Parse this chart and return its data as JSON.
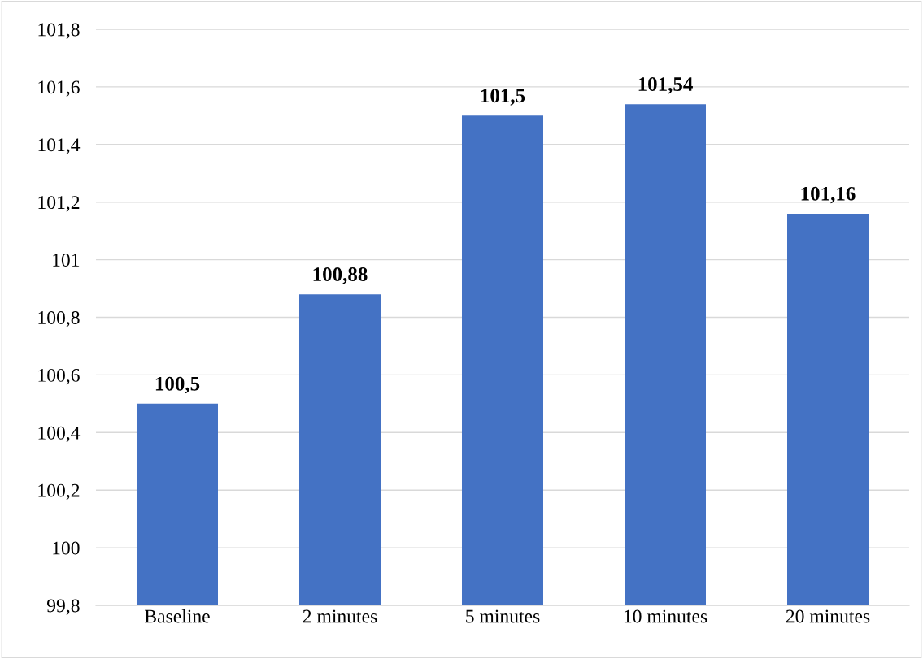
{
  "chart_data": {
    "type": "bar",
    "categories": [
      "Baseline",
      "2 minutes",
      "5 minutes",
      "10 minutes",
      "20 minutes"
    ],
    "values": [
      100.5,
      100.88,
      101.5,
      101.54,
      101.16
    ],
    "value_labels": [
      "100,5",
      "100,88",
      "101,5",
      "101,54",
      "101,16"
    ],
    "color": "#4472c4",
    "ylim": [
      99.8,
      101.8
    ],
    "yticks": [
      {
        "value": 99.8,
        "label": "99,8"
      },
      {
        "value": 100,
        "label": "100"
      },
      {
        "value": 100.2,
        "label": "100,2"
      },
      {
        "value": 100.4,
        "label": "100,4"
      },
      {
        "value": 100.6,
        "label": "100,6"
      },
      {
        "value": 100.8,
        "label": "100,8"
      },
      {
        "value": 101,
        "label": "101"
      },
      {
        "value": 101.2,
        "label": "101,2"
      },
      {
        "value": 101.4,
        "label": "101,4"
      },
      {
        "value": 101.6,
        "label": "101,6"
      },
      {
        "value": 101.8,
        "label": "101,8"
      }
    ],
    "grid": "y",
    "legend": false
  }
}
